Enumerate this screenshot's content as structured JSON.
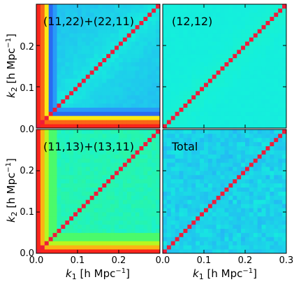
{
  "chart_data": {
    "type": "heatmap",
    "layout": "2x2 grid, shared axes",
    "xlabel_text": "k",
    "xlabel_sub": "1",
    "xlabel_units": " [h Mpc",
    "xlabel_exp": "−1",
    "xlabel_close": "]",
    "ylabel_text": "k",
    "ylabel_sub": "2",
    "ylabel_units": " [h Mpc",
    "ylabel_exp": "−1",
    "ylabel_close": "]",
    "xlim": [
      0,
      0.3
    ],
    "ylim": [
      0,
      0.3
    ],
    "x_ticks_left": [
      "0.0",
      "0.1",
      "0.2"
    ],
    "x_ticks_right": [
      "0.0",
      "0.1",
      "0.2",
      "0.3"
    ],
    "y_ticks_top": [
      "0.1",
      "0.2"
    ],
    "y_ticks_bottom": [
      "0.0",
      "0.1",
      "0.2"
    ],
    "y_tick_shared": "0.0",
    "grid_bins": 30,
    "diagonal_color": "#ee1c3a",
    "colormap": "gist_rainbow-like (blue low, red high)",
    "panels": [
      {
        "title": "(11,22)+(22,11)",
        "pattern": "strong_mix"
      },
      {
        "title": "(12,12)",
        "pattern": "uniform"
      },
      {
        "title": "(11,13)+(13,11)",
        "pattern": "green_mix"
      },
      {
        "title": "Total",
        "pattern": "noisy"
      }
    ]
  }
}
